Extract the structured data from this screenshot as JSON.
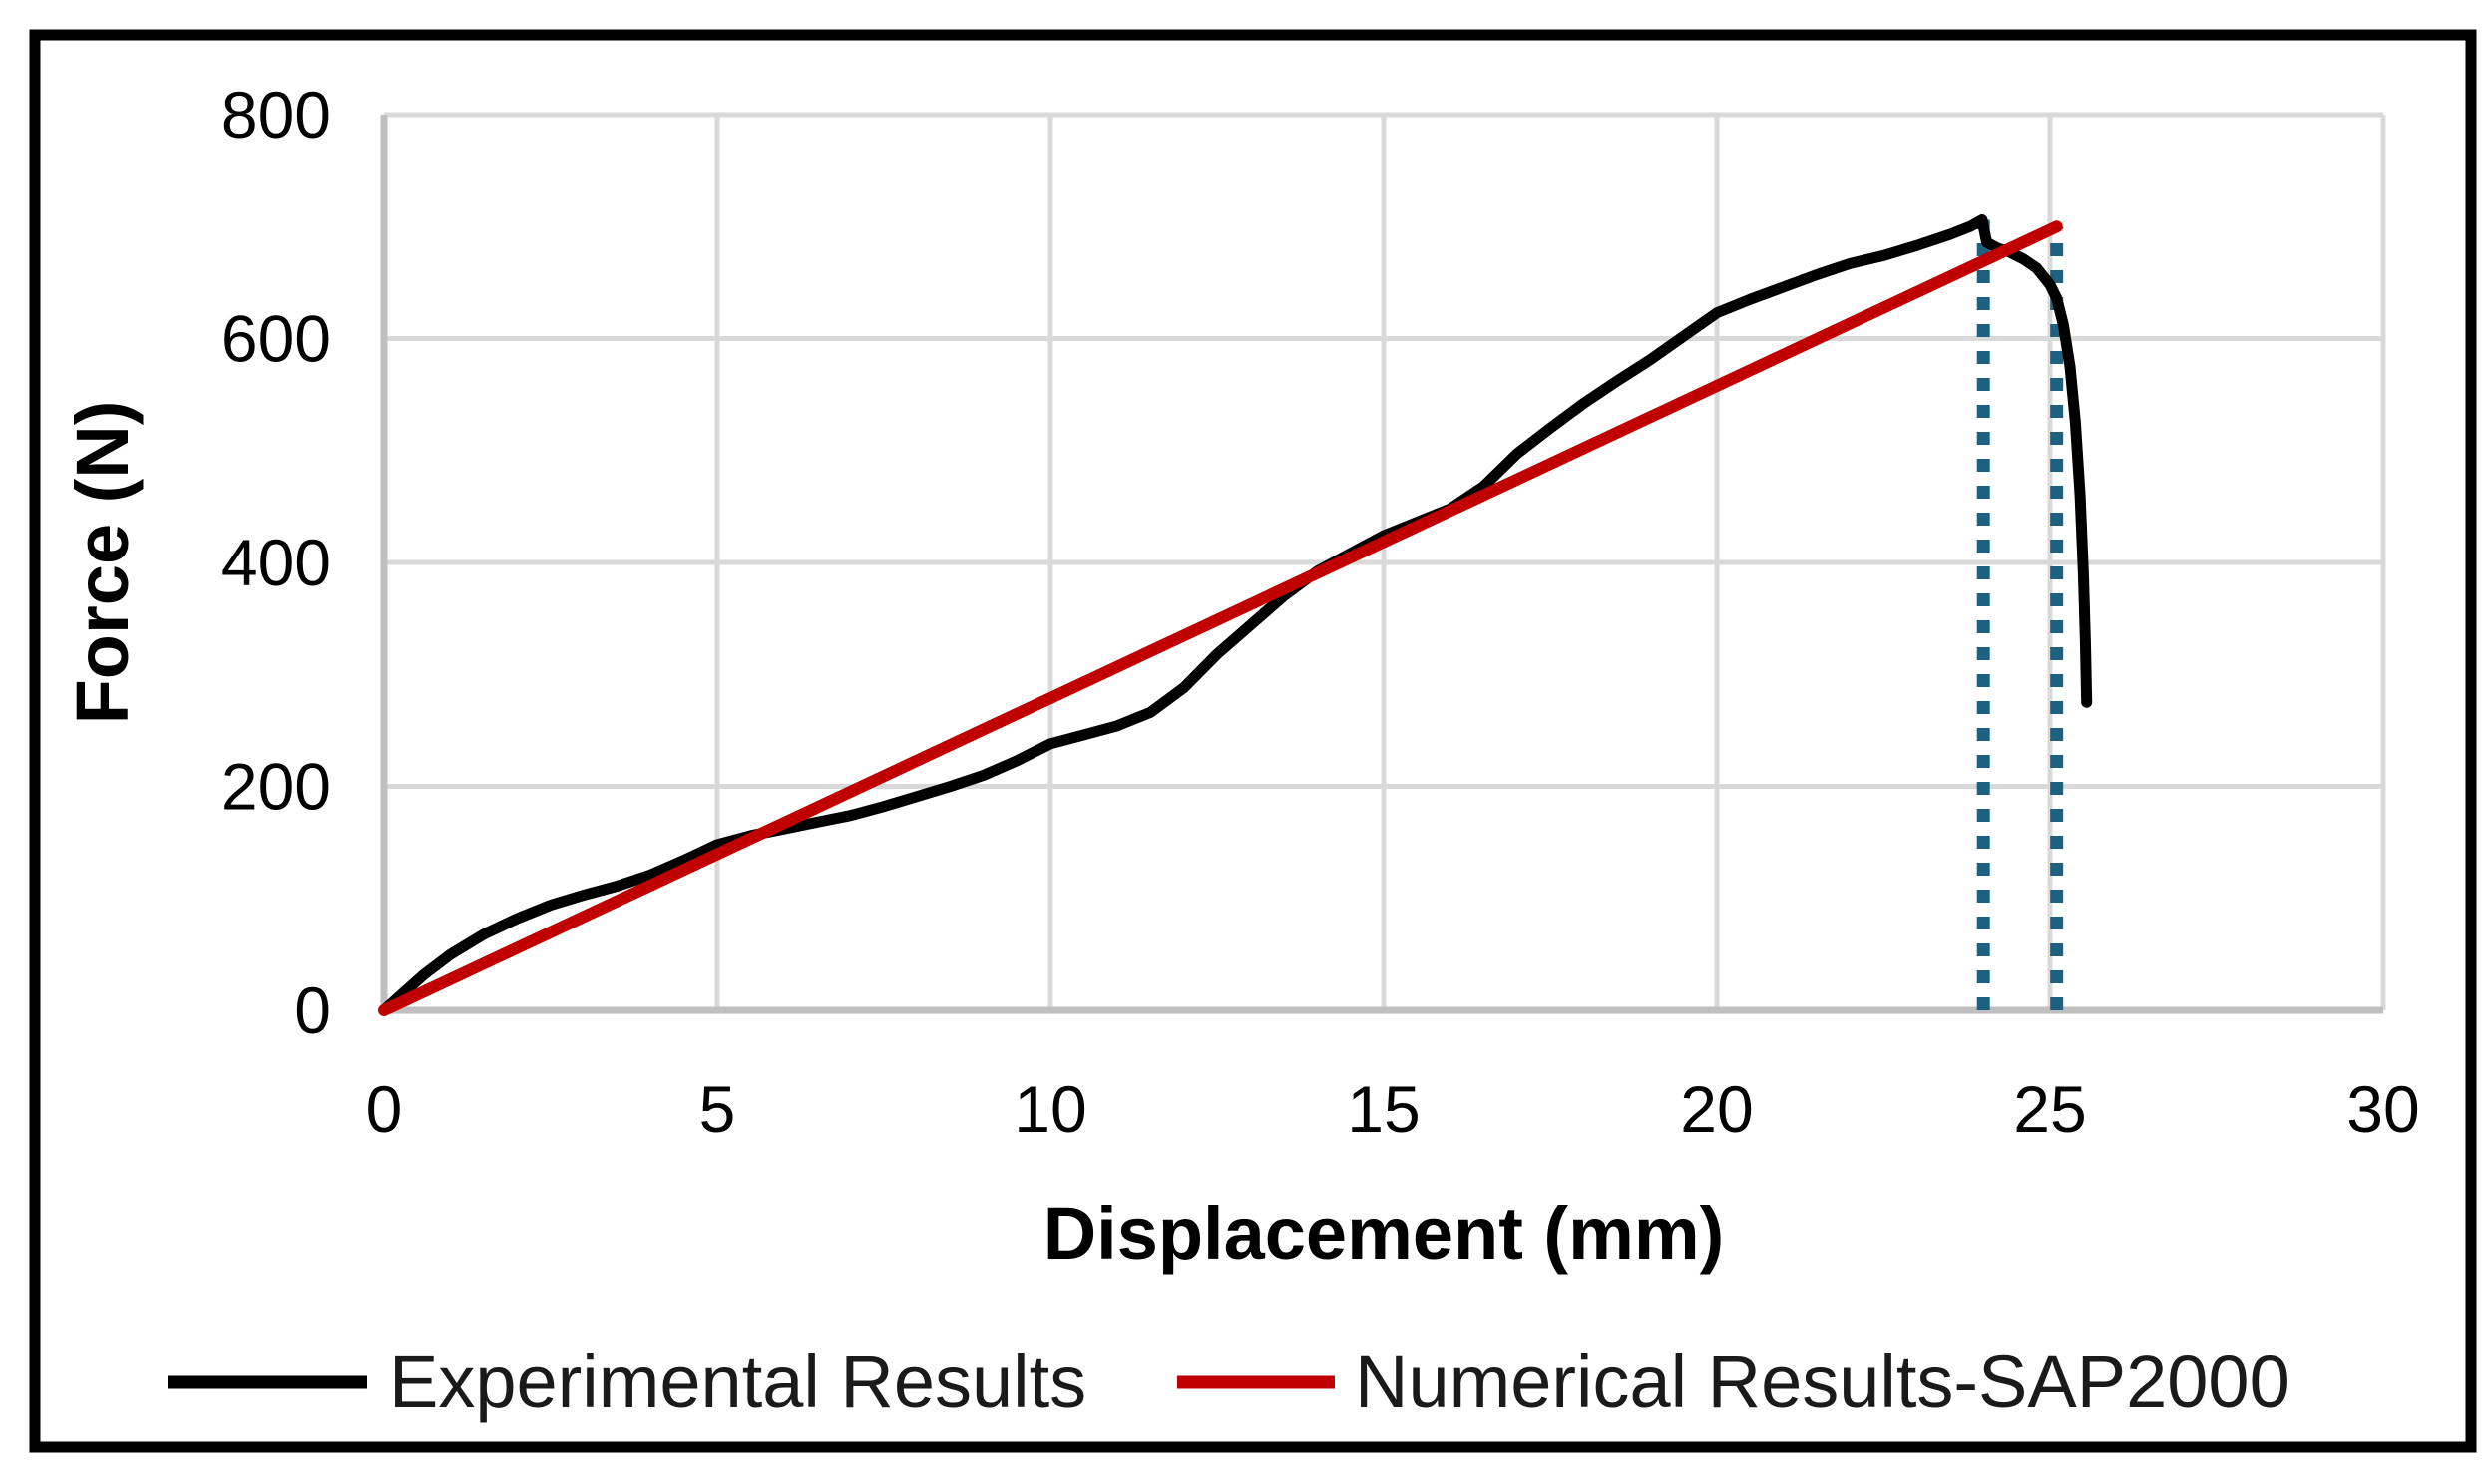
{
  "frame": {
    "background": "#ffffff",
    "border_color": "#000000"
  },
  "chart_data": {
    "type": "line",
    "title": "",
    "xlabel": "Displacement (mm)",
    "ylabel": "Force (N)",
    "xlim": [
      0,
      30
    ],
    "ylim": [
      0,
      800
    ],
    "x_ticks": [
      0,
      5,
      10,
      15,
      20,
      25,
      30
    ],
    "y_ticks": [
      0,
      200,
      400,
      600,
      800
    ],
    "grid": true,
    "gridline_color": "#d9d9d9",
    "axis_line_color": "#bfbfbf",
    "legend_position": "bottom",
    "series": [
      {
        "name": "Experimental Results",
        "color": "#000000",
        "points": [
          [
            0,
            0
          ],
          [
            0.3,
            16
          ],
          [
            0.6,
            32
          ],
          [
            1,
            50
          ],
          [
            1.5,
            68
          ],
          [
            2,
            82
          ],
          [
            2.5,
            94
          ],
          [
            3,
            103
          ],
          [
            3.5,
            111
          ],
          [
            4,
            121
          ],
          [
            4.5,
            134
          ],
          [
            5,
            148
          ],
          [
            5.5,
            156
          ],
          [
            6,
            162
          ],
          [
            6.5,
            168
          ],
          [
            7,
            174
          ],
          [
            7.5,
            182
          ],
          [
            8,
            191
          ],
          [
            8.5,
            200
          ],
          [
            9,
            210
          ],
          [
            9.5,
            223
          ],
          [
            10,
            238
          ],
          [
            10.5,
            246
          ],
          [
            11,
            254
          ],
          [
            11.5,
            266
          ],
          [
            12,
            288
          ],
          [
            12.5,
            318
          ],
          [
            13,
            344
          ],
          [
            13.5,
            370
          ],
          [
            14,
            392
          ],
          [
            14.5,
            408
          ],
          [
            15,
            424
          ],
          [
            15.5,
            436
          ],
          [
            16,
            448
          ],
          [
            16.5,
            468
          ],
          [
            17,
            497
          ],
          [
            17.5,
            520
          ],
          [
            18,
            542
          ],
          [
            18.5,
            562
          ],
          [
            19,
            581
          ],
          [
            19.5,
            602
          ],
          [
            20,
            623
          ],
          [
            20.5,
            635
          ],
          [
            21,
            646
          ],
          [
            21.5,
            657
          ],
          [
            22,
            667
          ],
          [
            22.5,
            674
          ],
          [
            23,
            683
          ],
          [
            23.5,
            693
          ],
          [
            23.8,
            700
          ],
          [
            23.98,
            706
          ],
          [
            24.05,
            686
          ],
          [
            24.2,
            681
          ],
          [
            24.4,
            677
          ],
          [
            24.6,
            671
          ],
          [
            24.8,
            663
          ],
          [
            25,
            648
          ],
          [
            25.1,
            636
          ],
          [
            25.2,
            612
          ],
          [
            25.3,
            575
          ],
          [
            25.38,
            525
          ],
          [
            25.45,
            460
          ],
          [
            25.5,
            390
          ],
          [
            25.53,
            330
          ],
          [
            25.55,
            275
          ]
        ]
      },
      {
        "name": "Numerical Results-SAP2000",
        "color": "#c00000",
        "points": [
          [
            0,
            0
          ],
          [
            25.1,
            700
          ]
        ]
      }
    ],
    "annotations": {
      "dotted_vertical_lines": {
        "color": "#1e6080",
        "lines": [
          {
            "x": 24.0,
            "y_top": 706
          },
          {
            "x": 25.1,
            "y_top": 700
          }
        ]
      }
    }
  }
}
